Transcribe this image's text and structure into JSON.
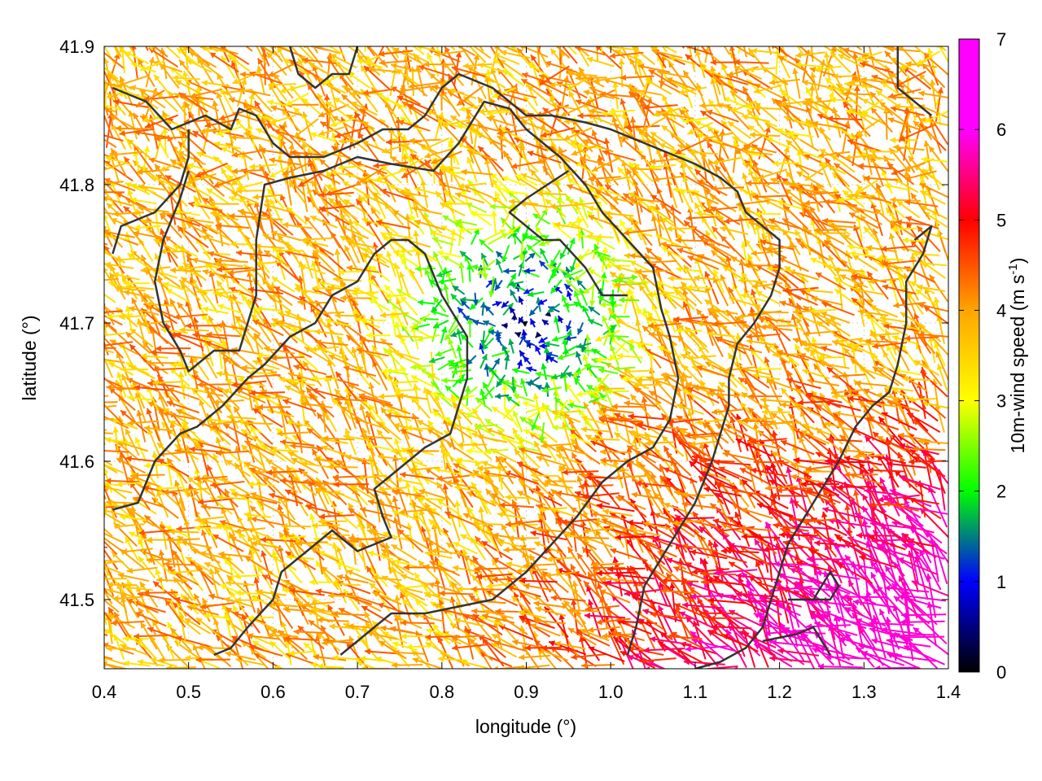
{
  "chart_data": {
    "type": "vector-field",
    "xlabel": "longitude (°)",
    "ylabel": "latitude (°)",
    "xlim": [
      0.4,
      1.4
    ],
    "ylim": [
      41.45,
      41.9
    ],
    "xticks": [
      "0.4",
      "0.5",
      "0.6",
      "0.7",
      "0.8",
      "0.9",
      "1.0",
      "1.1",
      "1.2",
      "1.3",
      "1.4"
    ],
    "yticks": [
      "41.5",
      "41.6",
      "41.7",
      "41.8",
      "41.9"
    ],
    "grid": true,
    "colorbar": {
      "label": "10m-wind speed (m s",
      "label_superscript": "-1",
      "label_suffix": ")",
      "range": [
        0,
        7
      ],
      "ticks": [
        "0",
        "1",
        "2",
        "3",
        "4",
        "5",
        "6",
        "7"
      ],
      "colors": [
        "#000000",
        "#0000ff",
        "#00ff00",
        "#ffff00",
        "#ffa500",
        "#ff0000",
        "#ff00ff"
      ]
    },
    "wind_field": {
      "description": "10 m wind vectors on a regular grid, colored by speed; weak winds (<2 m/s) in the center region, strong south-easterly winds (4-6 m/s) in the south-east",
      "lon_step": 0.0125,
      "lat_step": 0.0078,
      "calm_center": [
        0.9,
        41.7
      ],
      "calm_radius_deg": 0.12,
      "max_speed": 6.8
    },
    "contours": [
      {
        "name": "terrain-contour",
        "points": [
          [
            0.41,
            41.87
          ],
          [
            0.45,
            41.86
          ],
          [
            0.48,
            41.84
          ],
          [
            0.52,
            41.85
          ],
          [
            0.55,
            41.84
          ],
          [
            0.56,
            41.855
          ],
          [
            0.58,
            41.85
          ],
          [
            0.6,
            41.83
          ],
          [
            0.62,
            41.82
          ],
          [
            0.66,
            41.82
          ],
          [
            0.7,
            41.83
          ],
          [
            0.73,
            41.84
          ],
          [
            0.76,
            41.84
          ],
          [
            0.78,
            41.85
          ],
          [
            0.8,
            41.87
          ],
          [
            0.82,
            41.88
          ],
          [
            0.86,
            41.87
          ],
          [
            0.88,
            41.86
          ],
          [
            0.9,
            41.85
          ],
          [
            0.93,
            41.85
          ],
          [
            0.97,
            41.845
          ],
          [
            1.0,
            41.84
          ],
          [
            1.04,
            41.83
          ],
          [
            1.08,
            41.82
          ],
          [
            1.1,
            41.815
          ],
          [
            1.13,
            41.805
          ],
          [
            1.15,
            41.795
          ],
          [
            1.16,
            41.78
          ],
          [
            1.18,
            41.77
          ],
          [
            1.2,
            41.76
          ],
          [
            1.2,
            41.74
          ],
          [
            1.19,
            41.72
          ],
          [
            1.17,
            41.7
          ],
          [
            1.15,
            41.685
          ],
          [
            1.14,
            41.66
          ],
          [
            1.14,
            41.64
          ],
          [
            1.12,
            41.6
          ],
          [
            1.1,
            41.57
          ],
          [
            1.08,
            41.55
          ],
          [
            1.06,
            41.53
          ],
          [
            1.04,
            41.51
          ],
          [
            1.03,
            41.48
          ],
          [
            1.02,
            41.46
          ]
        ]
      },
      {
        "name": "terrain-contour",
        "points": [
          [
            0.41,
            41.565
          ],
          [
            0.44,
            41.57
          ],
          [
            0.46,
            41.6
          ],
          [
            0.49,
            41.62
          ],
          [
            0.51,
            41.625
          ],
          [
            0.54,
            41.64
          ],
          [
            0.57,
            41.66
          ],
          [
            0.59,
            41.67
          ],
          [
            0.62,
            41.69
          ],
          [
            0.65,
            41.7
          ],
          [
            0.67,
            41.72
          ],
          [
            0.7,
            41.73
          ],
          [
            0.72,
            41.75
          ],
          [
            0.74,
            41.76
          ],
          [
            0.76,
            41.76
          ],
          [
            0.78,
            41.75
          ],
          [
            0.8,
            41.72
          ],
          [
            0.83,
            41.69
          ],
          [
            0.83,
            41.66
          ],
          [
            0.81,
            41.62
          ],
          [
            0.78,
            41.61
          ],
          [
            0.76,
            41.6
          ],
          [
            0.74,
            41.59
          ],
          [
            0.72,
            41.58
          ],
          [
            0.73,
            41.56
          ],
          [
            0.74,
            41.545
          ],
          [
            0.7,
            41.535
          ],
          [
            0.67,
            41.55
          ],
          [
            0.65,
            41.54
          ],
          [
            0.63,
            41.53
          ],
          [
            0.61,
            41.52
          ],
          [
            0.6,
            41.5
          ],
          [
            0.57,
            41.48
          ],
          [
            0.55,
            41.465
          ],
          [
            0.53,
            41.46
          ]
        ]
      },
      {
        "name": "terrain-contour",
        "points": [
          [
            0.41,
            41.75
          ],
          [
            0.42,
            41.77
          ],
          [
            0.46,
            41.78
          ],
          [
            0.49,
            41.8
          ],
          [
            0.5,
            41.82
          ],
          [
            0.5,
            41.84
          ]
        ]
      },
      {
        "name": "terrain-contour",
        "points": [
          [
            0.5,
            41.81
          ],
          [
            0.49,
            41.79
          ],
          [
            0.47,
            41.76
          ],
          [
            0.46,
            41.73
          ],
          [
            0.47,
            41.7
          ],
          [
            0.49,
            41.68
          ],
          [
            0.5,
            41.665
          ],
          [
            0.53,
            41.68
          ],
          [
            0.56,
            41.68
          ],
          [
            0.57,
            41.7
          ],
          [
            0.58,
            41.72
          ],
          [
            0.58,
            41.76
          ],
          [
            0.59,
            41.8
          ],
          [
            0.62,
            41.805
          ],
          [
            0.66,
            41.81
          ],
          [
            0.7,
            41.82
          ],
          [
            0.74,
            41.815
          ],
          [
            0.79,
            41.81
          ],
          [
            0.82,
            41.83
          ],
          [
            0.85,
            41.86
          ],
          [
            0.88,
            41.855
          ],
          [
            0.9,
            41.84
          ],
          [
            0.94,
            41.82
          ],
          [
            0.97,
            41.8
          ],
          [
            0.99,
            41.78
          ],
          [
            1.02,
            41.76
          ],
          [
            1.05,
            41.74
          ],
          [
            1.06,
            41.71
          ],
          [
            1.07,
            41.69
          ],
          [
            1.08,
            41.66
          ],
          [
            1.07,
            41.63
          ],
          [
            1.05,
            41.61
          ],
          [
            1.02,
            41.6
          ],
          [
            0.99,
            41.585
          ],
          [
            0.96,
            41.56
          ],
          [
            0.93,
            41.54
          ],
          [
            0.9,
            41.52
          ],
          [
            0.86,
            41.5
          ],
          [
            0.82,
            41.495
          ],
          [
            0.78,
            41.49
          ],
          [
            0.74,
            41.49
          ],
          [
            0.72,
            41.48
          ],
          [
            0.7,
            41.47
          ],
          [
            0.68,
            41.46
          ]
        ]
      },
      {
        "name": "terrain-contour",
        "points": [
          [
            1.36,
            41.76
          ],
          [
            1.38,
            41.77
          ],
          [
            1.37,
            41.75
          ],
          [
            1.35,
            41.73
          ],
          [
            1.35,
            41.7
          ],
          [
            1.34,
            41.67
          ],
          [
            1.33,
            41.65
          ],
          [
            1.31,
            41.64
          ],
          [
            1.29,
            41.625
          ],
          [
            1.27,
            41.6
          ],
          [
            1.25,
            41.58
          ],
          [
            1.23,
            41.56
          ],
          [
            1.21,
            41.54
          ],
          [
            1.2,
            41.52
          ],
          [
            1.19,
            41.5
          ],
          [
            1.18,
            41.48
          ],
          [
            1.16,
            41.465
          ],
          [
            1.13,
            41.455
          ],
          [
            1.1,
            41.45
          ]
        ]
      },
      {
        "name": "terrain-contour",
        "points": [
          [
            1.18,
            41.47
          ],
          [
            1.22,
            41.475
          ],
          [
            1.24,
            41.48
          ],
          [
            1.26,
            41.46
          ]
        ]
      },
      {
        "name": "terrain-contour",
        "points": [
          [
            1.21,
            41.5
          ],
          [
            1.24,
            41.5
          ],
          [
            1.26,
            41.52
          ],
          [
            1.27,
            41.51
          ],
          [
            1.26,
            41.5
          ],
          [
            1.23,
            41.5
          ]
        ]
      },
      {
        "name": "terrain-contour",
        "points": [
          [
            0.62,
            41.9
          ],
          [
            0.63,
            41.88
          ],
          [
            0.65,
            41.87
          ],
          [
            0.67,
            41.88
          ],
          [
            0.69,
            41.88
          ],
          [
            0.7,
            41.9
          ]
        ]
      },
      {
        "name": "terrain-contour",
        "points": [
          [
            1.34,
            41.9
          ],
          [
            1.34,
            41.87
          ],
          [
            1.36,
            41.86
          ],
          [
            1.38,
            41.85
          ]
        ]
      },
      {
        "name": "terrain-contour",
        "points": [
          [
            0.95,
            41.81
          ],
          [
            0.9,
            41.79
          ],
          [
            0.88,
            41.78
          ],
          [
            0.92,
            41.76
          ],
          [
            0.94,
            41.76
          ],
          [
            0.97,
            41.74
          ],
          [
            0.99,
            41.72
          ],
          [
            1.02,
            41.72
          ]
        ]
      }
    ]
  }
}
